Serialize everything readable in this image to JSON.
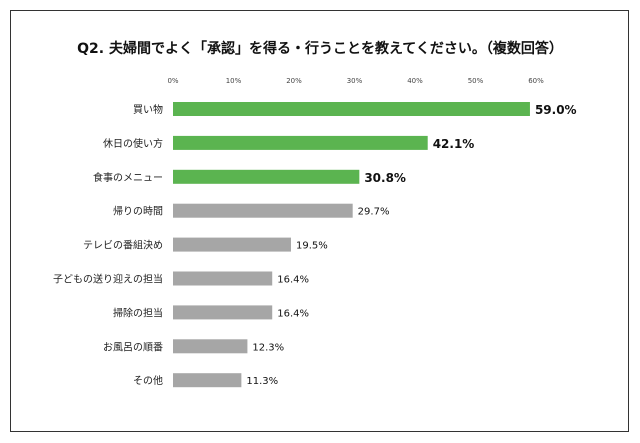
{
  "chart_data": {
    "type": "bar",
    "orientation": "horizontal",
    "title": "Q2. 夫婦間でよく「承認」を得る・行うことを教えてください。（複数回答）",
    "categories": [
      "買い物",
      "休日の使い方",
      "食事のメニュー",
      "帰りの時間",
      "テレビの番組決め",
      "子どもの送り迎えの担当",
      "掃除の担当",
      "お風呂の順番",
      "その他"
    ],
    "values": [
      59.0,
      42.1,
      30.8,
      29.7,
      19.5,
      16.4,
      16.4,
      12.3,
      11.3
    ],
    "data_labels": [
      "59.0%",
      "42.1%",
      "30.8%",
      "29.7%",
      "19.5%",
      "16.4%",
      "16.4%",
      "12.3%",
      "11.3%"
    ],
    "highlighted": [
      true,
      true,
      true,
      false,
      false,
      false,
      false,
      false,
      false
    ],
    "xticks": [
      "0%",
      "10%",
      "20%",
      "30%",
      "40%",
      "50%",
      "60%"
    ],
    "xlim": [
      0,
      60
    ],
    "grid": false,
    "colors": {
      "highlight": "#5bb450",
      "normal": "#a6a6a6"
    }
  }
}
